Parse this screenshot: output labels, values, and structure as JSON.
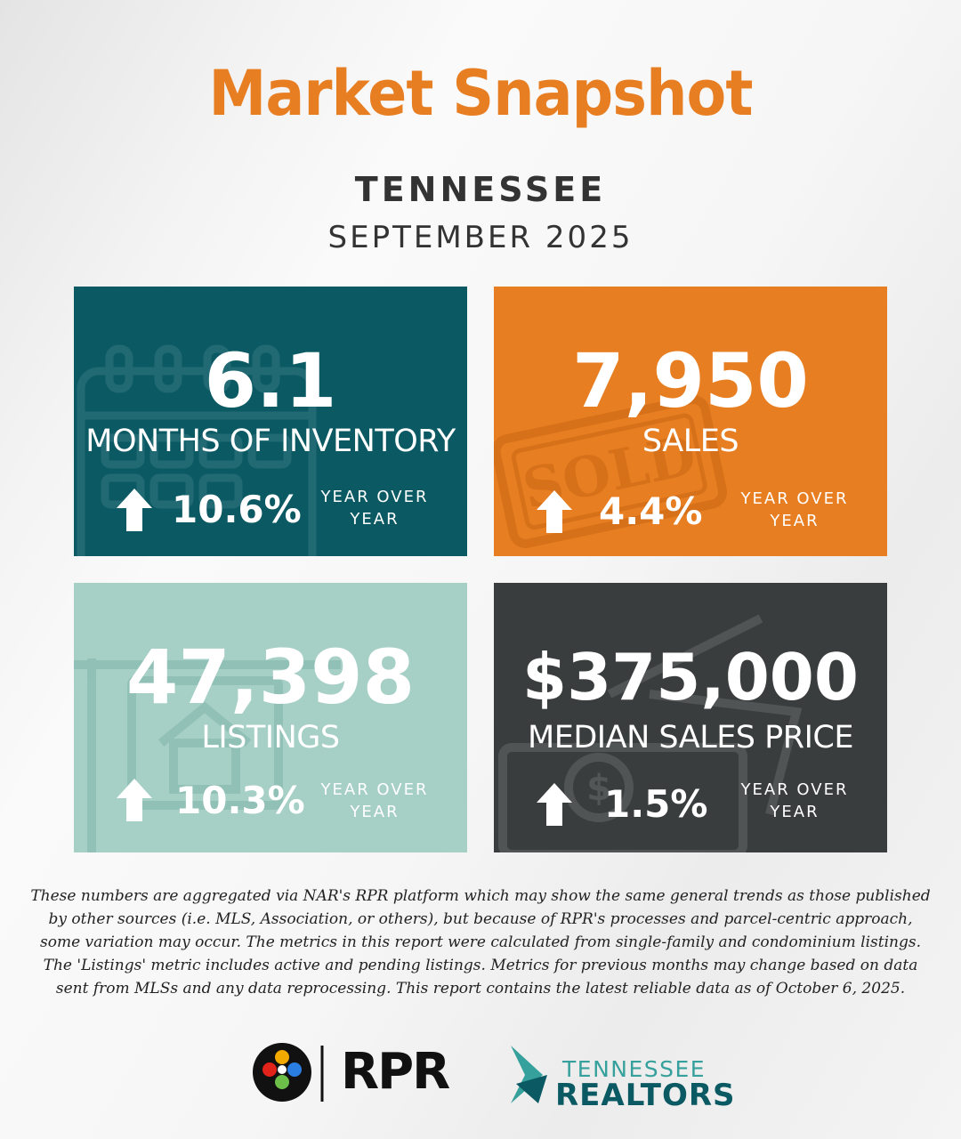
{
  "header": {
    "title": "Market Snapshot",
    "state": "TENNESSEE",
    "period": "SEPTEMBER 2025"
  },
  "metrics": [
    {
      "value": "6.1",
      "label": "MONTHS OF INVENTORY",
      "change": "10.6%",
      "direction": "up",
      "comparison": "YEAR OVER YEAR",
      "icon": "calendar-icon",
      "color": "#0b5963"
    },
    {
      "value": "7,950",
      "label": "SALES",
      "change": "4.4%",
      "direction": "up",
      "comparison": "YEAR OVER YEAR",
      "icon": "sold-stamp-icon",
      "color": "#e87e22"
    },
    {
      "value": "47,398",
      "label": "LISTINGS",
      "change": "10.3%",
      "direction": "up",
      "comparison": "YEAR OVER YEAR",
      "icon": "house-sign-icon",
      "color": "#a6cfc6"
    },
    {
      "value": "$375,000",
      "label": "MEDIAN SALES PRICE",
      "change": "1.5%",
      "direction": "up",
      "comparison": "YEAR OVER YEAR",
      "icon": "money-icon",
      "color": "#3a3d3d"
    }
  ],
  "disclaimer": "These numbers are aggregated via NAR's RPR platform which may show the same general trends as those published by other sources (i.e. MLS, Association, or others), but because of RPR's processes and parcel-centric approach, some variation may occur. The metrics in this report were calculated from single-family and condominium listings. The 'Listings' metric includes active and pending listings. Metrics for previous months may change based on data sent from MLSs and any data reprocessing. This report contains the latest reliable data as of October 6, 2025.",
  "logos": {
    "rpr": "RPR",
    "tn_top": "TENNESSEE",
    "tn_bottom": "REALTORS"
  }
}
